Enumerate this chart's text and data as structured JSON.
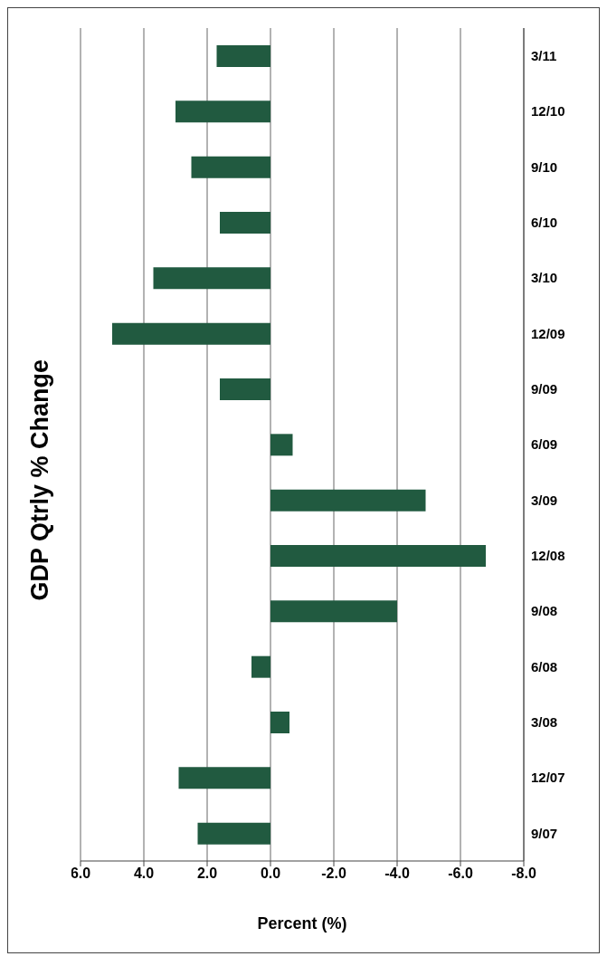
{
  "chart_data": {
    "type": "bar",
    "orientation": "horizontal",
    "title": "GDP Qtrly % Change",
    "xlabel": "Percent (%)",
    "categories": [
      "3/11",
      "12/10",
      "9/10",
      "6/10",
      "3/10",
      "12/09",
      "9/09",
      "6/09",
      "3/09",
      "12/08",
      "9/08",
      "6/08",
      "3/08",
      "12/07",
      "9/07"
    ],
    "values": [
      1.7,
      3.0,
      2.5,
      1.6,
      3.7,
      5.0,
      1.6,
      -0.7,
      -4.9,
      -6.8,
      -4.0,
      0.6,
      -0.6,
      2.9,
      2.3
    ],
    "color": "#215a40",
    "xlim": [
      6,
      -8
    ],
    "xticks": [
      {
        "value": 6,
        "label": "6.0"
      },
      {
        "value": 4,
        "label": "4.0"
      },
      {
        "value": 2,
        "label": "2.0"
      },
      {
        "value": 0,
        "label": "0.0"
      },
      {
        "value": -2,
        "label": "-2.0"
      },
      {
        "value": -4,
        "label": "-4.0"
      },
      {
        "value": -6,
        "label": "-6.0"
      },
      {
        "value": -8,
        "label": "-8.0"
      }
    ],
    "grid": "x",
    "legend": false
  }
}
